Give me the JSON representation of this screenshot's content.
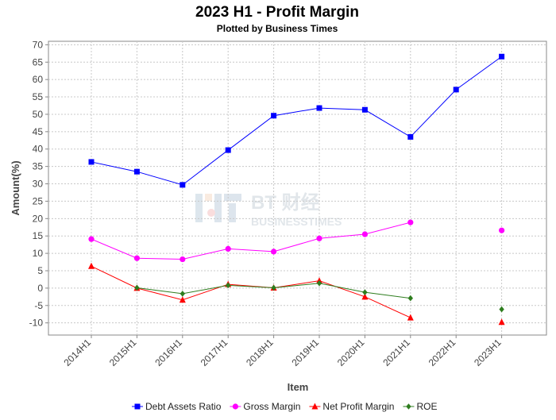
{
  "chart_data": {
    "type": "line",
    "title": "2023 H1 - Profit Margin",
    "subtitle": "Plotted by Business Times",
    "xlabel": "Item",
    "ylabel": "Amount(%)",
    "ylim": [
      -13.5,
      71
    ],
    "yticks": [
      -10,
      -5,
      0,
      5,
      10,
      15,
      20,
      25,
      30,
      35,
      40,
      45,
      50,
      55,
      60,
      65,
      70
    ],
    "grid": true,
    "legend_position": "bottom",
    "categories": [
      "2014H1",
      "2015H1",
      "2016H1",
      "2017H1",
      "2018H1",
      "2019H1",
      "2020H1",
      "2021H1",
      "2022H1",
      "2023H1"
    ],
    "series": [
      {
        "name": "Debt Assets Ratio",
        "color": "#0000ff",
        "marker": "square",
        "values": [
          36.3,
          33.5,
          29.7,
          39.7,
          49.6,
          51.8,
          51.3,
          43.5,
          57.1,
          66.6
        ]
      },
      {
        "name": "Gross Margin",
        "color": "#ff00ff",
        "marker": "circle",
        "values": [
          14.1,
          8.6,
          8.3,
          11.3,
          10.5,
          14.3,
          15.5,
          18.9,
          null,
          16.6
        ]
      },
      {
        "name": "Net Profit Margin",
        "color": "#ff0000",
        "marker": "triangle",
        "values": [
          6.3,
          0.0,
          -3.4,
          1.1,
          0.1,
          2.1,
          -2.5,
          -8.5,
          null,
          -9.8
        ]
      },
      {
        "name": "ROE",
        "color": "#2e7d1e",
        "marker": "diamond",
        "values": [
          null,
          0.1,
          -1.6,
          0.8,
          0.1,
          1.4,
          -1.2,
          -2.9,
          null,
          -6.1
        ]
      }
    ]
  },
  "watermark": {
    "logo_text": "BT 财经",
    "sub_text": "BUSINESSTIMES"
  }
}
